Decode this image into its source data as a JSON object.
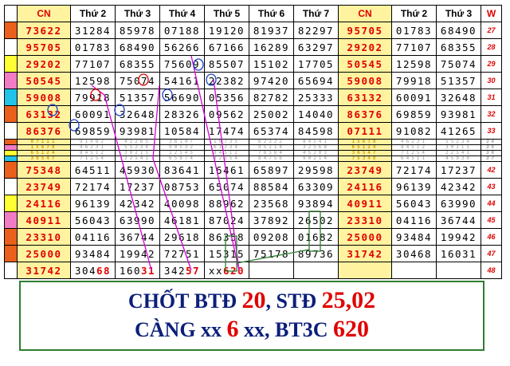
{
  "header": {
    "cn": "CN",
    "t2": "Thứ 2",
    "t3": "Thứ 3",
    "t4": "Thứ 4",
    "t5": "Thứ 5",
    "t6": "Thứ 6",
    "t7": "Thứ 7",
    "cn2": "CN",
    "t2b": "Thứ 2",
    "t3b": "Thứ 3",
    "w": "W"
  },
  "rows": [
    {
      "mark": "#e8601c",
      "cn": "73622",
      "d": [
        "31284",
        "85978",
        "07188",
        "19120",
        "81937",
        "82297"
      ],
      "cn2": "95705",
      "t2": "01783",
      "t3": "68490",
      "w": "27"
    },
    {
      "mark": "#ffffff",
      "cn": "95705",
      "d": [
        "01783",
        "68490",
        "56266",
        "67166",
        "16289",
        "63297"
      ],
      "cn2": "29202",
      "t2": "77107",
      "t3": "68355",
      "w": "28"
    },
    {
      "mark": "#ffff33",
      "cn": "29202",
      "d": [
        "77107",
        "68355",
        "75609",
        "85507",
        "15102",
        "17705"
      ],
      "cn2": "50545",
      "t2": "12598",
      "t3": "75074",
      "w": "29"
    },
    {
      "mark": "#f27bc5",
      "cn": "50545",
      "d": [
        "12598",
        "75074",
        "54161",
        "22382",
        "97420",
        "65694"
      ],
      "cn2": "59008",
      "t2": "79918",
      "t3": "51357",
      "w": "30"
    },
    {
      "mark": "#22c3e8",
      "cn": "59008",
      "d": [
        "79918",
        "51357",
        "56690",
        "05356",
        "82782",
        "25333"
      ],
      "cn2": "63132",
      "t2": "60091",
      "t3": "32648",
      "w": "31"
    },
    {
      "mark": "#e8601c",
      "cn": "63132",
      "d": [
        "60091",
        "32648",
        "28326",
        "09562",
        "25002",
        "14040"
      ],
      "cn2": "86376",
      "t2": "69859",
      "t3": "93981",
      "w": "32"
    },
    {
      "mark": "#ffffff",
      "cn": "86376",
      "d": [
        "69859",
        "93981",
        "10584",
        "17474",
        "65374",
        "84598"
      ],
      "cn2": "07111",
      "t2": "91082",
      "t3": "41265",
      "w": "33"
    }
  ],
  "blurred": [
    {
      "mark": "#e8601c",
      "cn": "07111",
      "d": [
        "91082",
        "41265",
        "38147",
        "10735",
        "62322",
        "84541"
      ],
      "cn2": "15678",
      "t2": "46231",
      "t3": "55234",
      "w": "34"
    },
    {
      "mark": "#f27bc5",
      "cn": "15678",
      "d": [
        "46231",
        "55234",
        "90532",
        "61234",
        "95214",
        "32568"
      ],
      "cn2": "65124",
      "t2": "84512",
      "t3": "30215",
      "w": "35"
    },
    {
      "mark": "#ffff33",
      "cn": "65124",
      "d": [
        "84512",
        "30215",
        "12545",
        "84512",
        "78564",
        "45203"
      ],
      "cn2": "36547",
      "t2": "71254",
      "t3": "22541",
      "w": "36"
    },
    {
      "mark": "#22c3e8",
      "cn": "36547",
      "d": [
        "71254",
        "22541",
        "65874",
        "32154",
        "84756",
        "90214"
      ],
      "cn2": "75348",
      "t2": "64511",
      "t3": "45930",
      "w": "37"
    }
  ],
  "rows2": [
    {
      "mark": "#e8601c",
      "cn": "75348",
      "d": [
        "64511",
        "45930",
        "83641",
        "16461",
        "65897",
        "29598"
      ],
      "cn2": "23749",
      "t2": "72174",
      "t3": "17237",
      "w": "42"
    },
    {
      "mark": "#ffffff",
      "cn": "23749",
      "d": [
        "72174",
        "17237",
        "08753",
        "65074",
        "88584",
        "63309"
      ],
      "cn2": "24116",
      "t2": "96139",
      "t3": "42342",
      "w": "43"
    },
    {
      "mark": "#ffff33",
      "cn": "24116",
      "d": [
        "96139",
        "42342",
        "40098",
        "88962",
        "23568",
        "93894"
      ],
      "cn2": "40911",
      "t2": "56043",
      "t3": "63990",
      "w": "44"
    },
    {
      "mark": "#f27bc5",
      "cn": "40911",
      "d": [
        "56043",
        "63990",
        "46181",
        "87024",
        "37892",
        "26502"
      ],
      "cn2": "23310",
      "t2": "04116",
      "t3": "36744",
      "w": "45"
    },
    {
      "mark": "#e8601c",
      "cn": "23310",
      "d": [
        "04116",
        "36744",
        "29618",
        "86358",
        "09208",
        "01682"
      ],
      "cn2": "25000",
      "t2": "93484",
      "t3": "19942",
      "w": "46"
    },
    {
      "mark": "#e8601c",
      "cn": "25000",
      "d": [
        "93484",
        "19942",
        "72751",
        "15315",
        "75178",
        "89736"
      ],
      "cn2": "31742",
      "t2": "30468",
      "t3": "16031",
      "w": "47"
    }
  ],
  "last": {
    "mark": "#ffffff",
    "cn": "31742",
    "t2a": "304",
    "t2b": "68",
    "t3a": "160",
    "t3b": "31",
    "t4a": "342",
    "t4b": "57",
    "t5a": "xx",
    "t5b": "620",
    "w": "48"
  },
  "summary": {
    "line1_a": "CHỐT BTĐ ",
    "line1_b": "20",
    "line1_c": ", STĐ ",
    "line1_d": "25,02",
    "line2_a": "CÀNG xx ",
    "line2_b": "6",
    "line2_c": " xx, BT3C ",
    "line2_d": "620"
  },
  "colors": {
    "highlight": "#fff3a0",
    "red": "#e00000",
    "navy": "#0b1f7a",
    "green_border": "#2e7d32",
    "magenta_line": "#d400d4",
    "blue_circle": "#1f3fc4"
  }
}
